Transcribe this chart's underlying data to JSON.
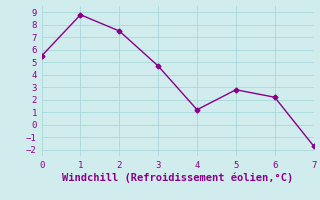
{
  "x": [
    0,
    1,
    2,
    3,
    4,
    5,
    6,
    7
  ],
  "y": [
    5.5,
    8.8,
    7.5,
    4.7,
    1.2,
    2.8,
    2.2,
    -1.7
  ],
  "line_color": "#8B008B",
  "marker": "D",
  "marker_size": 2.5,
  "xlabel": "Windchill (Refroidissement éolien,°C)",
  "xlabel_color": "#8B008B",
  "xlim": [
    0,
    7
  ],
  "ylim": [
    -2.5,
    9.5
  ],
  "yticks": [
    -2,
    -1,
    0,
    1,
    2,
    3,
    4,
    5,
    6,
    7,
    8,
    9
  ],
  "xticks": [
    0,
    1,
    2,
    3,
    4,
    5,
    6,
    7
  ],
  "grid_color": "#a8d8d8",
  "background_color": "#d0ecec",
  "tick_label_color": "#8B008B",
  "tick_label_fontsize": 6.5,
  "xlabel_fontsize": 7.5,
  "line_width": 1.0
}
